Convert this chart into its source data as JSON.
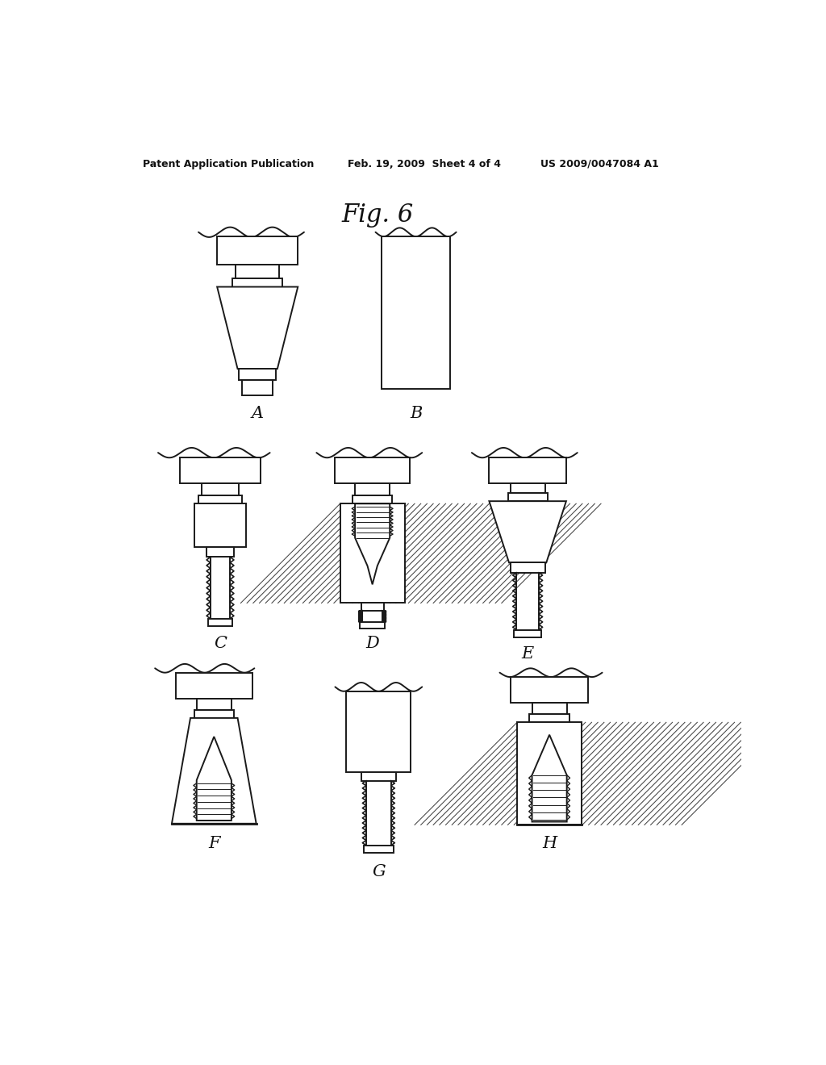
{
  "header_left": "Patent Application Publication",
  "header_mid": "Feb. 19, 2009  Sheet 4 of 4",
  "header_right": "US 2009/0047084 A1",
  "fig_title": "Fig. 6",
  "bg_color": "#ffffff",
  "lc": "#1a1a1a",
  "hc": "#444444"
}
